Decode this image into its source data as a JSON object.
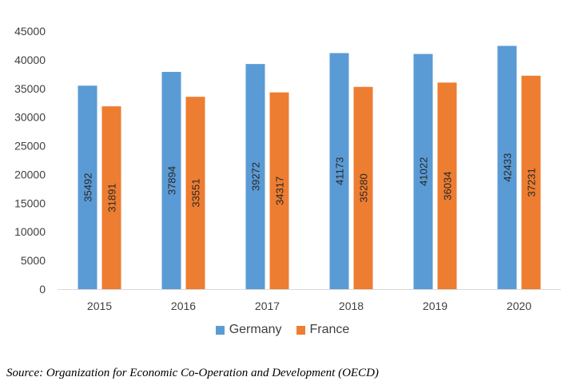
{
  "chart_data": {
    "type": "bar",
    "title": "",
    "xlabel": "",
    "ylabel": "",
    "categories": [
      "2015",
      "2016",
      "2017",
      "2018",
      "2019",
      "2020"
    ],
    "series": [
      {
        "name": "Germany",
        "color": "#5b9bd5",
        "values": [
          35492,
          37894,
          39272,
          41173,
          41022,
          42433
        ]
      },
      {
        "name": "France",
        "color": "#ed7d31",
        "values": [
          31891,
          33551,
          34317,
          35280,
          36034,
          37231
        ]
      }
    ],
    "ylim": [
      0,
      45000
    ],
    "yticks": [
      "0",
      "5000",
      "10000",
      "15000",
      "20000",
      "25000",
      "30000",
      "35000",
      "40000",
      "45000"
    ],
    "grid": false,
    "legend_position": "bottom"
  },
  "source_note": "Source: Organization for Economic Co-Operation and Development (OECD)"
}
